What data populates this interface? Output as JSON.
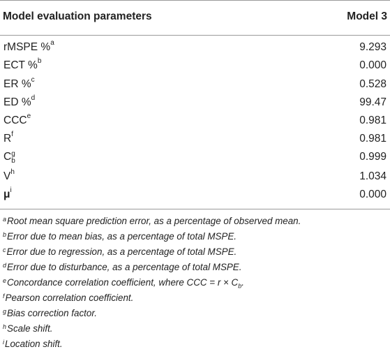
{
  "table": {
    "header": {
      "param": "Model evaluation parameters",
      "model": "Model 3"
    },
    "rows": [
      {
        "label": "rMSPE %",
        "sup": "a",
        "value": "9.293"
      },
      {
        "label": "ECT %",
        "sup": "b",
        "value": "0.000"
      },
      {
        "label": "ER %",
        "sup": "c",
        "value": "0.528"
      },
      {
        "label": "ED %",
        "sup": "d",
        "value": "99.47"
      },
      {
        "label": "CCC",
        "sup": "e",
        "value": "0.981"
      },
      {
        "label": "R",
        "sup": "f",
        "value": "0.981"
      },
      {
        "label": "C",
        "sup": "g",
        "sub": "b",
        "value": "0.999"
      },
      {
        "label": "V",
        "sup": "h",
        "value": "1.034"
      },
      {
        "label": "μ",
        "sup": "i",
        "value": "0.000"
      }
    ]
  },
  "footnotes": [
    {
      "mark": "a",
      "text": "Root mean square prediction error, as a percentage of observed mean."
    },
    {
      "mark": "b",
      "text": "Error due to mean bias, as a percentage of total MSPE."
    },
    {
      "mark": "c",
      "text": "Error due to regression, as a percentage of total MSPE."
    },
    {
      "mark": "d",
      "text": "Error due to disturbance, as a percentage of total MSPE."
    },
    {
      "mark": "e",
      "text": "Concordance correlation coefficient, where CCC = r × C",
      "sub": "b",
      "after": "."
    },
    {
      "mark": "f",
      "text": "Pearson correlation coefficient."
    },
    {
      "mark": "g",
      "text": "Bias correction factor."
    },
    {
      "mark": "h",
      "text": "Scale shift."
    },
    {
      "mark": "i",
      "text": "Location shift."
    }
  ]
}
